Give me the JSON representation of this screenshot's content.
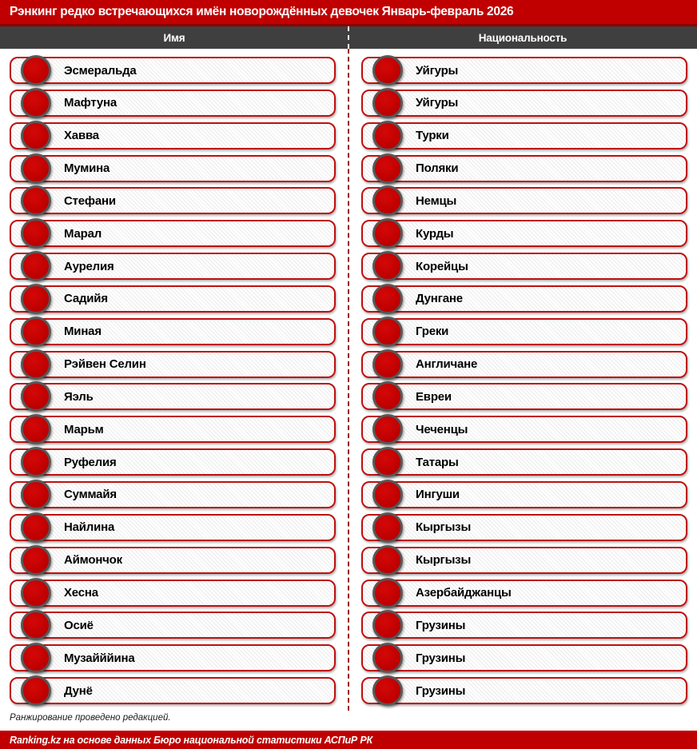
{
  "title": "Рэнкинг редко встречающихся имён новорождённых девочек Январь-февраль 2026",
  "column_headers": {
    "left": "Имя",
    "right": "Национальность"
  },
  "footnote": "Ранжирование проведено редакцией.",
  "source_bar": "Ranking.kz на основе данных Бюро национальной статистики АСПиР РК",
  "icons": {
    "bullet": "red-circle-icon"
  },
  "colors": {
    "accent_red": "#C00000",
    "dark_red": "#8B0000",
    "header_gray": "#3F3F3F",
    "circle_border_gray": "#575757",
    "pill_border_red": "#BE1010",
    "text_black": "#000000"
  },
  "chart_data": {
    "type": "table",
    "title": "Рэнкинг редко встречающихся имён новорождённых девочек Январь-февраль 2026",
    "columns": [
      "Имя",
      "Национальность"
    ],
    "rows": [
      [
        "Эсмеральда",
        "Уйгуры"
      ],
      [
        "Мафтуна",
        "Уйгуры"
      ],
      [
        "Хавва",
        "Турки"
      ],
      [
        "Мумина",
        "Поляки"
      ],
      [
        "Стефани",
        "Немцы"
      ],
      [
        "Марал",
        "Курды"
      ],
      [
        "Аурелия",
        "Корейцы"
      ],
      [
        "Садийя",
        "Дунгане"
      ],
      [
        "Миная",
        "Греки"
      ],
      [
        "Рэйвен Селин",
        "Англичане"
      ],
      [
        "Яэль",
        "Евреи"
      ],
      [
        "Марьм",
        "Чеченцы"
      ],
      [
        "Руфелия",
        "Татары"
      ],
      [
        "Суммайя",
        "Ингуши"
      ],
      [
        "Найлина",
        "Кыргызы"
      ],
      [
        "Аймончок",
        "Кыргызы"
      ],
      [
        "Хесна",
        "Азербайджанцы"
      ],
      [
        "Осиё",
        "Грузины"
      ],
      [
        "Музайййина",
        "Грузины"
      ],
      [
        "Дунё",
        "Грузины"
      ]
    ]
  }
}
